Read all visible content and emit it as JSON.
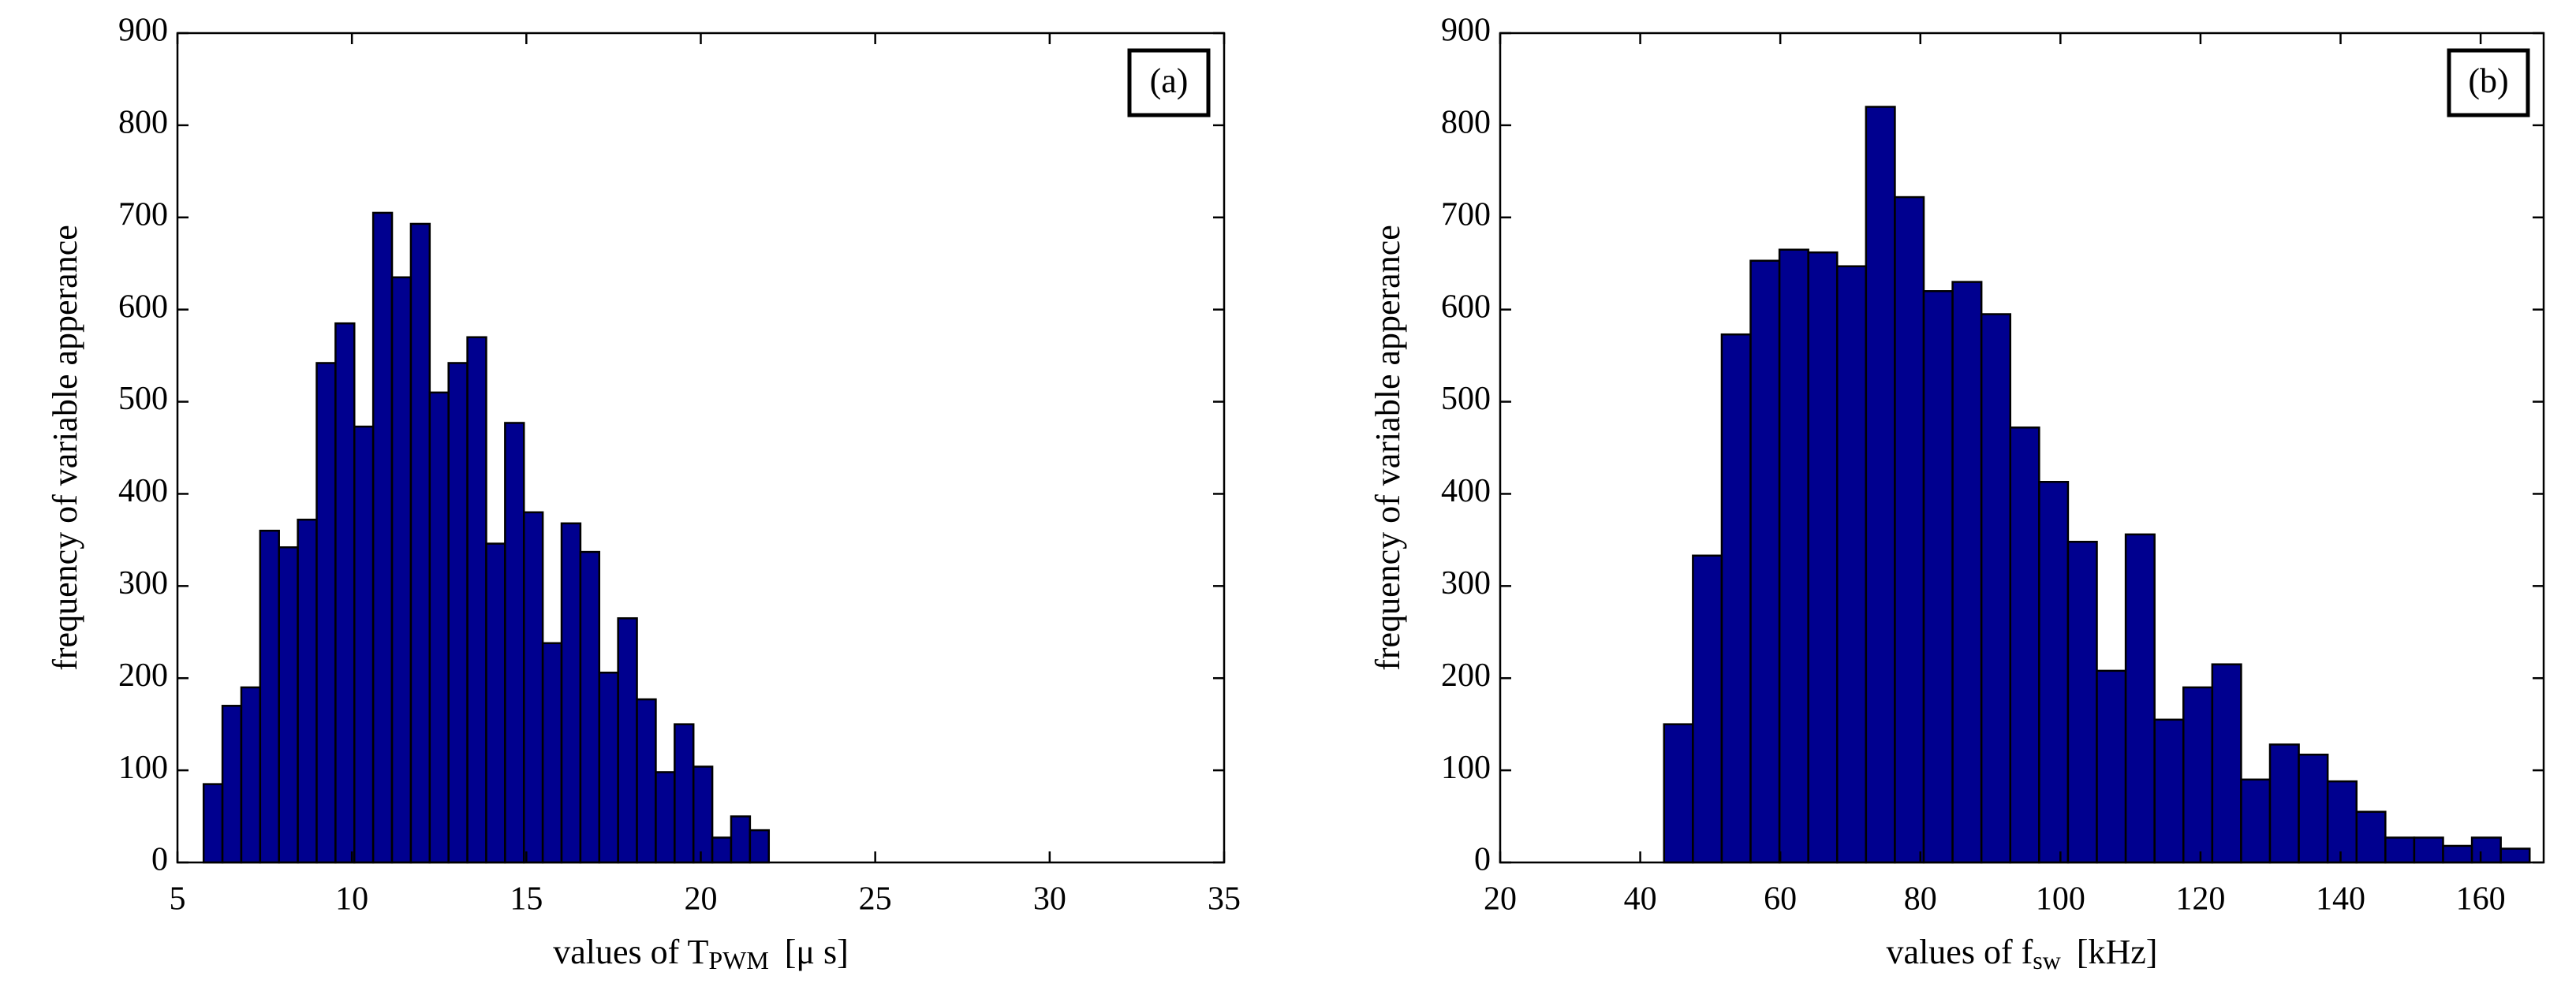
{
  "chart_data": [
    {
      "type": "histogram",
      "color": "#00008f",
      "edgecolor": "#000000",
      "ylabel": "frequency of variable apperance",
      "xlabel": {
        "text": "values of T",
        "sub": "PWM",
        "after": "[μ s]"
      },
      "panel_label": "(a)",
      "xlim": [
        5,
        35
      ],
      "xticks": [
        5,
        10,
        15,
        20,
        25,
        30,
        35
      ],
      "ylim": [
        0,
        900
      ],
      "yticks": [
        0,
        100,
        200,
        300,
        400,
        500,
        600,
        700,
        800,
        900
      ],
      "bins": [
        5.75,
        6.29,
        6.83,
        7.37,
        7.91,
        8.45,
        8.99,
        9.53,
        10.07,
        10.61,
        11.15,
        11.69,
        12.23,
        12.77,
        13.31,
        13.85,
        14.39,
        14.93,
        15.47,
        16.01,
        16.55,
        17.09,
        17.63,
        18.17,
        18.71,
        19.25,
        19.79,
        20.33,
        20.87,
        21.41,
        21.95
      ],
      "values": [
        85,
        170,
        190,
        360,
        342,
        372,
        542,
        585,
        473,
        705,
        635,
        693,
        510,
        542,
        570,
        346,
        477,
        380,
        238,
        368,
        337,
        206,
        265,
        177,
        98,
        150,
        104,
        27,
        50,
        35
      ]
    },
    {
      "type": "histogram",
      "color": "#00008f",
      "edgecolor": "#000000",
      "ylabel": "frequency of variable apperance",
      "xlabel": {
        "text": "values of f",
        "sub": "sw",
        "after": "[kHz]"
      },
      "panel_label": "(b)",
      "xlim": [
        20,
        169
      ],
      "xticks": [
        20,
        40,
        60,
        80,
        100,
        120,
        140,
        160
      ],
      "ylim": [
        0,
        900
      ],
      "yticks": [
        0,
        100,
        200,
        300,
        400,
        500,
        600,
        700,
        800,
        900
      ],
      "bins": [
        43.4,
        47.52,
        51.64,
        55.76,
        59.88,
        64,
        68.12,
        72.24,
        76.36,
        80.48,
        84.6,
        88.72,
        92.84,
        96.96,
        101.08,
        105.2,
        109.32,
        113.44,
        117.56,
        121.68,
        125.8,
        129.92,
        134.04,
        138.16,
        142.28,
        146.4,
        150.52,
        154.64,
        158.76,
        162.88,
        167
      ],
      "values": [
        150,
        333,
        573,
        653,
        665,
        662,
        647,
        820,
        722,
        620,
        630,
        595,
        472,
        413,
        348,
        208,
        356,
        155,
        190,
        215,
        90,
        128,
        117,
        88,
        55,
        27,
        27,
        18,
        27,
        15
      ]
    }
  ]
}
